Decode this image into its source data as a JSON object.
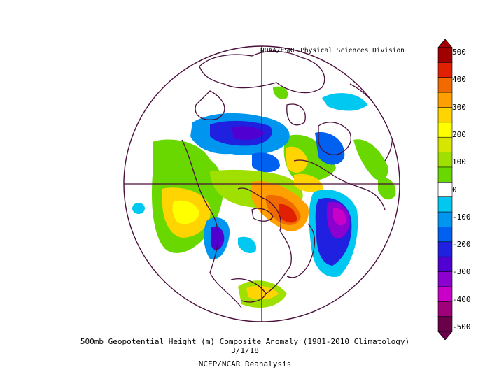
{
  "header": {
    "credit": "NOAA/ESRL Physical Sciences Division"
  },
  "caption": {
    "line1": "500mb Geopotential Height (m) Composite Anomaly (1981-2010 Climatology)",
    "line2": "3/1/18",
    "line3": "NCEP/NCAR Reanalysis"
  },
  "colorbar": {
    "labels": [
      "500",
      "400",
      "300",
      "200",
      "100",
      "0",
      "-100",
      "-200",
      "-300",
      "-400",
      "-500"
    ],
    "colors": [
      "#a00000",
      "#e02000",
      "#f06a00",
      "#ffa000",
      "#ffd400",
      "#ffff00",
      "#d6e600",
      "#a0e000",
      "#68d800",
      "#ffffff",
      "#00c8f0",
      "#0096f0",
      "#0060f0",
      "#2020e0",
      "#5000d0",
      "#8c00d0",
      "#c800c8",
      "#a0007a",
      "#6a004a"
    ]
  },
  "map": {
    "projection": "north polar stereographic",
    "outline_color": "#4a0f3a"
  }
}
